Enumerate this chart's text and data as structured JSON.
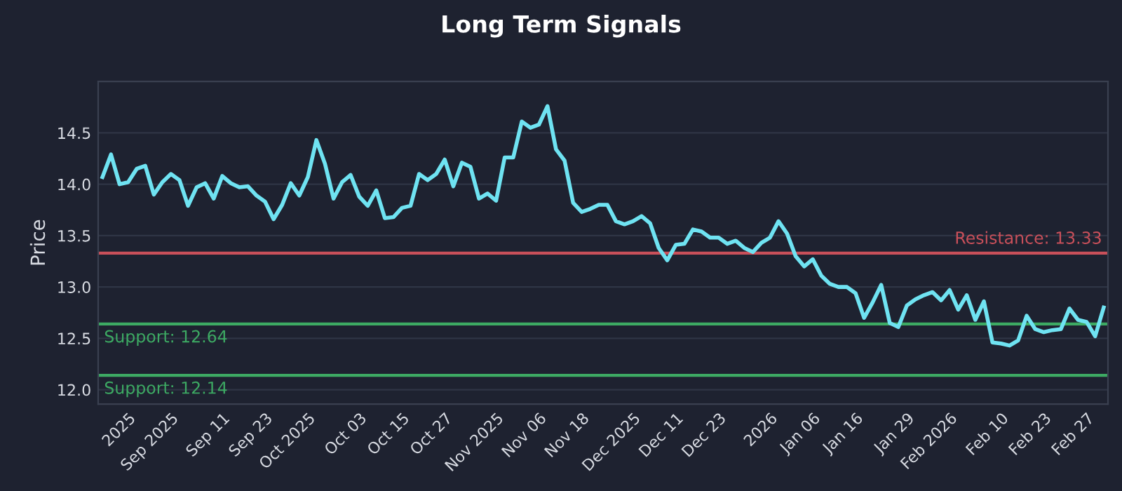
{
  "chart_data": {
    "type": "line",
    "title": "Long Term Signals",
    "ylabel": "Price",
    "categories": [
      null,
      null,
      null,
      "2025",
      null,
      null,
      null,
      null,
      "Sep 2025",
      null,
      null,
      null,
      null,
      null,
      "Sep 11",
      null,
      null,
      null,
      null,
      "Sep 23",
      null,
      null,
      null,
      null,
      "Oct 2025",
      null,
      null,
      null,
      null,
      null,
      "Oct 03",
      null,
      null,
      null,
      null,
      "Oct 15",
      null,
      null,
      null,
      null,
      "Oct 27",
      null,
      null,
      null,
      null,
      null,
      "Nov 2025",
      null,
      null,
      null,
      null,
      "Nov 06",
      null,
      null,
      null,
      null,
      "Nov 18",
      null,
      null,
      null,
      null,
      null,
      "Dec 2025",
      null,
      null,
      null,
      null,
      "Dec 11",
      null,
      null,
      null,
      null,
      "Dec 23",
      null,
      null,
      null,
      null,
      null,
      "2026",
      null,
      null,
      null,
      null,
      "Jan 06",
      null,
      null,
      null,
      null,
      "Jan 16",
      null,
      null,
      null,
      null,
      null,
      "Jan 29",
      null,
      null,
      null,
      null,
      "Feb 2026",
      null,
      null,
      null,
      null,
      null,
      "Feb 10",
      null,
      null,
      null,
      null,
      "Feb 23",
      null,
      null,
      null,
      null,
      "Feb 27",
      null,
      null
    ],
    "series": [
      {
        "color": "#6fe3f2",
        "values": [
          14.07,
          14.29,
          14.0,
          14.02,
          14.15,
          14.18,
          13.9,
          14.02,
          14.1,
          14.04,
          13.79,
          13.97,
          14.01,
          13.86,
          14.08,
          14.01,
          13.97,
          13.98,
          13.89,
          13.83,
          13.66,
          13.8,
          14.01,
          13.89,
          14.07,
          14.43,
          14.2,
          13.86,
          14.02,
          14.09,
          13.88,
          13.79,
          13.94,
          13.67,
          13.68,
          13.77,
          13.79,
          14.1,
          14.04,
          14.1,
          14.24,
          13.98,
          14.21,
          14.17,
          13.86,
          13.91,
          13.84,
          14.26,
          14.26,
          14.61,
          14.55,
          14.58,
          14.76,
          14.34,
          14.23,
          13.82,
          13.73,
          13.76,
          13.8,
          13.8,
          13.64,
          13.61,
          13.64,
          13.69,
          13.62,
          13.38,
          13.26,
          13.41,
          13.42,
          13.56,
          13.54,
          13.48,
          13.48,
          13.42,
          13.45,
          13.38,
          13.34,
          13.43,
          13.48,
          13.64,
          13.52,
          13.3,
          13.2,
          13.27,
          13.11,
          13.03,
          13.0,
          13.0,
          12.94,
          12.7,
          12.85,
          13.02,
          12.65,
          12.61,
          12.82,
          12.88,
          12.92,
          12.95,
          12.87,
          12.97,
          12.78,
          12.92,
          12.68,
          12.86,
          12.46,
          12.45,
          12.43,
          12.48,
          12.72,
          12.59,
          12.56,
          12.58,
          12.59,
          12.79,
          12.68,
          12.66,
          12.52,
          12.8
        ]
      }
    ],
    "ylim": [
      11.86,
      15.0
    ],
    "yticks": [
      {
        "value": 12,
        "label": "12.0"
      },
      12.5,
      {
        "value": 13,
        "label": "13.0"
      },
      13.5,
      {
        "value": 14,
        "label": "14.0"
      },
      14.5
    ],
    "grid": "y",
    "ref_lines": [
      {
        "axis": "y",
        "value": 13.33,
        "label": "Resistance: 13.33",
        "color": "#c9505a"
      },
      {
        "axis": "y",
        "value": 12.64,
        "label": "Support: 12.64",
        "color": "#3daa63"
      },
      {
        "axis": "y",
        "value": 12.14,
        "label": "Support: 12.14",
        "color": "#3daa63"
      }
    ]
  }
}
